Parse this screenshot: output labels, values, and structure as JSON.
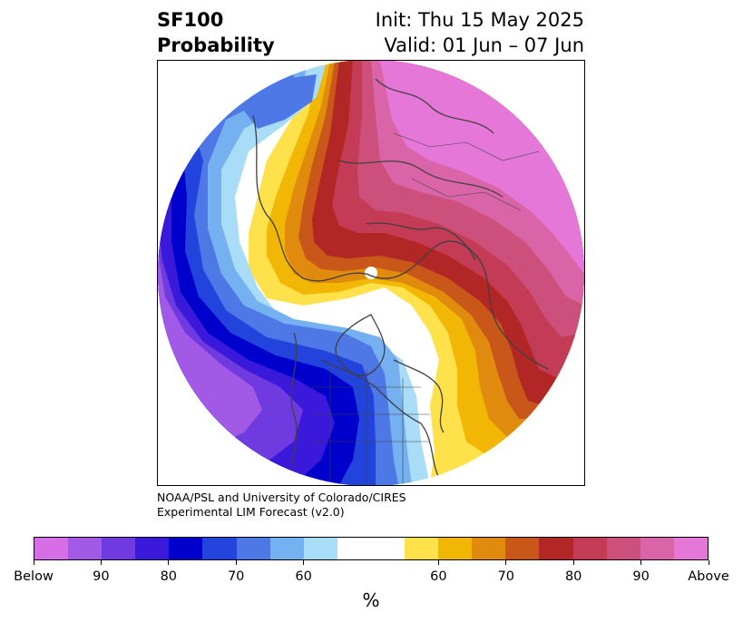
{
  "header": {
    "title_line1": "SF100",
    "title_line2": "Probability",
    "init_label": "Init: Thu 15 May 2025",
    "valid_label": "Valid: 01 Jun – 07 Jun"
  },
  "map": {
    "projection": "north polar stereographic",
    "field": "SF100 probability"
  },
  "credit": {
    "line1": "NOAA/PSL and University of Colorado/CIRES",
    "line2": "Experimental LIM Forecast (v2.0)"
  },
  "colorbar": {
    "colors": [
      "#d66ee8",
      "#a25ae6",
      "#6f3ae0",
      "#3a19db",
      "#0000cc",
      "#2244dd",
      "#4d78e6",
      "#75b0f0",
      "#a9dcf7",
      "#ffffff",
      "#ffe14b",
      "#f2b705",
      "#e08a0e",
      "#c9571a",
      "#b32626",
      "#c43b55",
      "#cd4f7b",
      "#d965a8",
      "#e577d8"
    ],
    "tick_labels": [
      "Below",
      "90",
      "80",
      "70",
      "60",
      "60",
      "70",
      "80",
      "90",
      "Above"
    ],
    "unit": "%"
  },
  "palette": {
    "below_100": "#d66ee8",
    "below_90": "#a25ae6",
    "below_80": "#3a19db",
    "below_70": "#2244dd",
    "below_60": "#75b0f0",
    "above_60": "#ffe14b",
    "above_70": "#e08a0e",
    "above_80": "#b32626",
    "above_90": "#cd4f7b",
    "above_100": "#e577d8",
    "coastline": "#404040"
  }
}
